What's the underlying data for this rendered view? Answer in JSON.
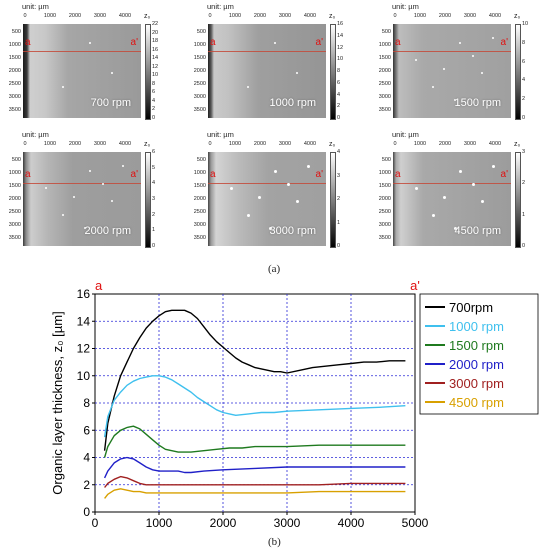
{
  "sublabels": {
    "a": "(a)",
    "b": "(b)"
  },
  "panels": [
    {
      "rpm_label": "700 rpm",
      "unit": "unit: µm",
      "colorbar_title": "z₀",
      "x_ticks": [
        "0",
        "1000",
        "2000",
        "3000",
        "4000"
      ],
      "y_ticks": [
        "500",
        "1000",
        "1500",
        "2000",
        "2500",
        "3000",
        "3500"
      ],
      "colorbar_ticks": [
        "0",
        "2",
        "4",
        "6",
        "8",
        "10",
        "12",
        "14",
        "16",
        "18",
        "20",
        "22"
      ],
      "colorbar_max": 22,
      "marker_left": "a",
      "marker_right": "a'"
    },
    {
      "rpm_label": "1000 rpm",
      "unit": "unit: µm",
      "colorbar_title": "z₀",
      "x_ticks": [
        "0",
        "1000",
        "2000",
        "3000",
        "4000"
      ],
      "y_ticks": [
        "500",
        "1000",
        "1500",
        "2000",
        "2500",
        "3000",
        "3500"
      ],
      "colorbar_ticks": [
        "0",
        "2",
        "4",
        "6",
        "8",
        "10",
        "12",
        "14",
        "16"
      ],
      "colorbar_max": 16,
      "marker_left": "a",
      "marker_right": "a'"
    },
    {
      "rpm_label": "1500 rpm",
      "unit": "unit: µm",
      "colorbar_title": "z₀",
      "x_ticks": [
        "0",
        "1000",
        "2000",
        "3000",
        "4000"
      ],
      "y_ticks": [
        "500",
        "1000",
        "1500",
        "2000",
        "2500",
        "3000",
        "3500"
      ],
      "colorbar_ticks": [
        "0",
        "2",
        "4",
        "6",
        "8",
        "10"
      ],
      "colorbar_max": 10,
      "marker_left": "a",
      "marker_right": "a'"
    },
    {
      "rpm_label": "2000 rpm",
      "unit": "unit: µm",
      "colorbar_title": "z₀",
      "x_ticks": [
        "0",
        "1000",
        "2000",
        "3000",
        "4000"
      ],
      "y_ticks": [
        "500",
        "1000",
        "1500",
        "2000",
        "2500",
        "3000",
        "3500"
      ],
      "colorbar_ticks": [
        "0",
        "1",
        "2",
        "3",
        "4",
        "5",
        "6"
      ],
      "colorbar_max": 6,
      "marker_left": "a",
      "marker_right": "a'"
    },
    {
      "rpm_label": "3000 rpm",
      "unit": "unit: µm",
      "colorbar_title": "z₀",
      "x_ticks": [
        "0",
        "1000",
        "2000",
        "3000",
        "4000"
      ],
      "y_ticks": [
        "500",
        "1000",
        "1500",
        "2000",
        "2500",
        "3000",
        "3500"
      ],
      "colorbar_ticks": [
        "0",
        "1",
        "2",
        "3",
        "4"
      ],
      "colorbar_max": 4,
      "marker_left": "a",
      "marker_right": "a'"
    },
    {
      "rpm_label": "4500 rpm",
      "unit": "unit: µm",
      "colorbar_title": "z₀",
      "x_ticks": [
        "0",
        "1000",
        "2000",
        "3000",
        "4000"
      ],
      "y_ticks": [
        "500",
        "1000",
        "1500",
        "2000",
        "2500",
        "3000",
        "3500"
      ],
      "colorbar_ticks": [
        "0",
        "1",
        "2",
        "3"
      ],
      "colorbar_max": 3,
      "marker_left": "a",
      "marker_right": "a'"
    }
  ],
  "chart_data": {
    "type": "line",
    "xlabel": "Scan distance [µm]",
    "ylabel": "Organic layer thickness, z₀ [µm]",
    "xlim": [
      0,
      5000
    ],
    "ylim": [
      0,
      16
    ],
    "x_ticks": [
      0,
      1000,
      2000,
      3000,
      4000,
      5000
    ],
    "y_ticks": [
      0,
      2,
      4,
      6,
      8,
      10,
      12,
      14,
      16
    ],
    "grid": true,
    "legend_position": "top-right",
    "marker_left": "a",
    "marker_right": "a'",
    "series": [
      {
        "name": "700rpm",
        "color": "#000000",
        "x": [
          150,
          200,
          300,
          400,
          500,
          600,
          700,
          800,
          900,
          1000,
          1100,
          1200,
          1300,
          1400,
          1500,
          1600,
          1700,
          1800,
          1900,
          2000,
          2100,
          2200,
          2300,
          2400,
          2500,
          2600,
          2700,
          2800,
          2900,
          3000,
          3200,
          3400,
          3600,
          3800,
          4000,
          4200,
          4400,
          4600,
          4850
        ],
        "y": [
          4.5,
          6.5,
          8.5,
          10.0,
          11.0,
          12.0,
          12.8,
          13.5,
          14.0,
          14.4,
          14.7,
          14.8,
          14.8,
          14.8,
          14.6,
          14.2,
          13.6,
          13.0,
          12.5,
          12.1,
          11.7,
          11.3,
          11.0,
          10.8,
          10.6,
          10.5,
          10.4,
          10.3,
          10.3,
          10.2,
          10.4,
          10.6,
          10.7,
          10.8,
          10.9,
          11.0,
          11.0,
          11.1,
          11.1
        ]
      },
      {
        "name": "1000 rpm",
        "color": "#3fc0ee",
        "x": [
          150,
          200,
          300,
          400,
          500,
          600,
          700,
          800,
          900,
          1000,
          1100,
          1200,
          1300,
          1400,
          1500,
          1600,
          1700,
          1800,
          1900,
          2000,
          2100,
          2200,
          2400,
          2600,
          2800,
          3000,
          3500,
          4000,
          4500,
          4850
        ],
        "y": [
          5.5,
          7.0,
          8.2,
          8.8,
          9.3,
          9.6,
          9.8,
          9.9,
          10.0,
          10.0,
          9.9,
          9.7,
          9.4,
          9.1,
          8.8,
          8.4,
          8.1,
          7.8,
          7.5,
          7.3,
          7.2,
          7.1,
          7.2,
          7.3,
          7.3,
          7.4,
          7.5,
          7.6,
          7.7,
          7.8
        ]
      },
      {
        "name": "1500 rpm",
        "color": "#1f7a1f",
        "x": [
          150,
          200,
          300,
          400,
          500,
          600,
          700,
          800,
          900,
          1000,
          1100,
          1200,
          1300,
          1400,
          1500,
          1700,
          1900,
          2100,
          2300,
          2500,
          2700,
          3000,
          3500,
          4000,
          4500,
          4850
        ],
        "y": [
          4.0,
          4.8,
          5.6,
          6.0,
          6.2,
          6.3,
          6.1,
          5.7,
          5.3,
          4.9,
          4.6,
          4.5,
          4.4,
          4.4,
          4.4,
          4.5,
          4.6,
          4.7,
          4.7,
          4.8,
          4.8,
          4.8,
          4.9,
          4.9,
          4.9,
          4.9
        ]
      },
      {
        "name": "2000 rpm",
        "color": "#2020c8",
        "x": [
          150,
          200,
          300,
          400,
          500,
          600,
          700,
          800,
          900,
          1000,
          1100,
          1200,
          1300,
          1400,
          1500,
          1700,
          2000,
          2500,
          3000,
          3500,
          4000,
          4500,
          4850
        ],
        "y": [
          2.5,
          3.0,
          3.6,
          3.9,
          4.0,
          3.9,
          3.6,
          3.3,
          3.1,
          3.0,
          3.0,
          3.0,
          3.0,
          2.9,
          2.9,
          3.0,
          3.1,
          3.2,
          3.3,
          3.3,
          3.3,
          3.3,
          3.3
        ]
      },
      {
        "name": "3000 rpm",
        "color": "#a02020",
        "x": [
          150,
          200,
          300,
          400,
          500,
          600,
          700,
          800,
          900,
          1000,
          1200,
          1500,
          2000,
          2500,
          3000,
          3500,
          4000,
          4500,
          4850
        ],
        "y": [
          1.8,
          2.1,
          2.4,
          2.6,
          2.5,
          2.3,
          2.1,
          2.0,
          2.0,
          2.0,
          2.0,
          2.0,
          2.0,
          2.0,
          2.0,
          2.0,
          2.1,
          2.1,
          2.1
        ]
      },
      {
        "name": "4500 rpm",
        "color": "#d8a000",
        "x": [
          150,
          200,
          300,
          400,
          500,
          600,
          700,
          800,
          1000,
          1200,
          1500,
          2000,
          2500,
          3000,
          3500,
          4000,
          4500,
          4850
        ],
        "y": [
          1.0,
          1.3,
          1.6,
          1.7,
          1.6,
          1.5,
          1.5,
          1.4,
          1.4,
          1.4,
          1.4,
          1.4,
          1.4,
          1.4,
          1.5,
          1.5,
          1.5,
          1.5
        ]
      }
    ]
  }
}
